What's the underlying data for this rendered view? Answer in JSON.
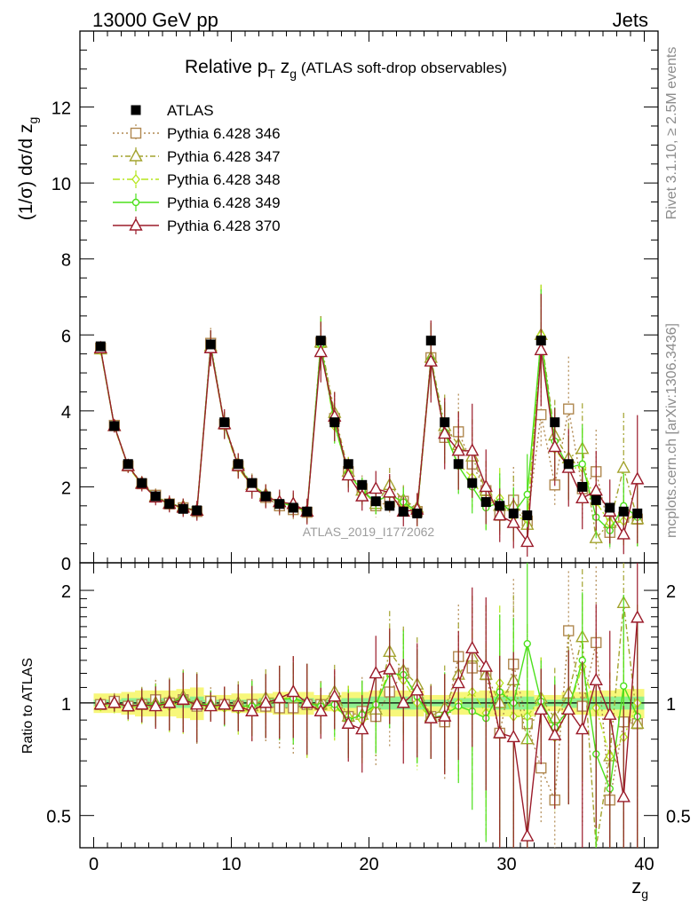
{
  "header": {
    "left": "13000 GeV pp",
    "right": "Jets"
  },
  "side_labels": {
    "rivet": "Rivet 3.1.10, ≥ 2.5M events",
    "mcplots": "mcplots.cern.ch [arXiv:1306.3436]"
  },
  "chart_data": [
    {
      "type": "line",
      "title": "Relative pT zg (ATLAS soft-drop observables)",
      "ylabel": "(1/σ) dσ/d zg",
      "xlabel": "zg",
      "xlim": [
        -1,
        41
      ],
      "ylim": [
        0,
        14
      ],
      "yticks": [
        0,
        2,
        4,
        6,
        8,
        10,
        12
      ],
      "xticks": [
        0,
        10,
        20,
        30,
        40
      ],
      "watermark": "ATLAS_2019_I1772062",
      "legend_position": "top-left",
      "x": [
        0.5,
        1.5,
        2.5,
        3.5,
        4.5,
        5.5,
        6.5,
        7.5,
        8.5,
        9.5,
        10.5,
        11.5,
        12.5,
        13.5,
        14.5,
        15.5,
        16.5,
        17.5,
        18.5,
        19.5,
        20.5,
        21.5,
        22.5,
        23.5,
        24.5,
        25.5,
        26.5,
        27.5,
        28.5,
        29.5,
        30.5,
        31.5,
        32.5,
        33.5,
        34.5,
        35.5,
        36.5,
        37.5,
        38.5,
        39.5
      ],
      "series": [
        {
          "name": "ATLAS",
          "color": "#000000",
          "marker": "filled-square",
          "values": [
            5.7,
            3.6,
            2.6,
            2.1,
            1.75,
            1.55,
            1.42,
            1.38,
            5.75,
            3.7,
            2.6,
            2.1,
            1.75,
            1.55,
            1.45,
            1.35,
            5.85,
            3.7,
            2.6,
            2.05,
            1.62,
            1.5,
            1.35,
            1.3,
            5.85,
            3.7,
            2.6,
            2.1,
            1.6,
            1.5,
            1.3,
            1.25,
            5.85,
            3.7,
            2.6,
            2.0,
            1.65,
            1.45,
            1.35,
            1.3
          ]
        },
        {
          "name": "Pythia 6.428 346",
          "color": "#b08850",
          "marker": "open-square",
          "dash": "2,3",
          "values": [
            5.65,
            3.62,
            2.55,
            2.08,
            1.78,
            1.55,
            1.45,
            1.35,
            5.78,
            3.65,
            2.55,
            2.08,
            1.72,
            1.5,
            1.4,
            1.33,
            5.8,
            3.8,
            2.4,
            1.95,
            1.5,
            1.6,
            1.62,
            1.35,
            5.4,
            3.3,
            3.45,
            2.6,
            1.9,
            1.25,
            1.65,
            1.1,
            3.9,
            2.05,
            4.05,
            1.95,
            2.4,
            0.8,
            1.2,
            1.15
          ]
        },
        {
          "name": "Pythia 6.428 347",
          "color": "#a3a32e",
          "marker": "open-triangle",
          "dash": "6,3,2,3",
          "values": [
            5.62,
            3.6,
            2.55,
            2.1,
            1.75,
            1.56,
            1.48,
            1.38,
            5.7,
            3.65,
            2.6,
            2.05,
            1.8,
            1.6,
            1.55,
            1.35,
            5.8,
            3.95,
            2.4,
            1.9,
            1.55,
            2.05,
            1.65,
            1.45,
            5.4,
            3.6,
            3.1,
            2.8,
            1.9,
            1.5,
            1.5,
            1.0,
            6.0,
            3.35,
            2.75,
            3.0,
            0.65,
            1.05,
            2.5,
            1.15
          ]
        },
        {
          "name": "Pythia 6.428 348",
          "color": "#b5e61d",
          "marker": "open-diamond",
          "dash": "8,3,2,3",
          "values": [
            5.6,
            3.58,
            2.52,
            2.06,
            1.73,
            1.52,
            1.44,
            1.36,
            5.65,
            3.6,
            2.5,
            2.0,
            1.75,
            1.6,
            1.5,
            1.32,
            5.7,
            3.6,
            2.4,
            1.85,
            1.6,
            1.85,
            1.55,
            1.3,
            5.3,
            3.4,
            2.6,
            2.25,
            1.5,
            1.7,
            1.2,
            1.15,
            6.0,
            3.0,
            2.5,
            2.5,
            1.6,
            1.05,
            1.1,
            1.3
          ]
        },
        {
          "name": "Pythia 6.428 349",
          "color": "#4ce01c",
          "marker": "open-circle",
          "dash": "",
          "values": [
            5.62,
            3.6,
            2.55,
            2.08,
            1.74,
            1.55,
            1.47,
            1.37,
            5.72,
            3.62,
            2.55,
            2.05,
            1.75,
            1.58,
            1.5,
            1.35,
            5.75,
            3.65,
            2.35,
            1.9,
            1.6,
            1.8,
            1.6,
            1.35,
            5.35,
            3.45,
            2.55,
            2.0,
            1.45,
            1.6,
            1.3,
            1.8,
            5.9,
            3.2,
            2.5,
            2.6,
            1.2,
            0.85,
            1.5,
            1.2
          ]
        },
        {
          "name": "Pythia 6.428 370",
          "color": "#9b1b2a",
          "marker": "open-triangle",
          "dash": "",
          "values": [
            5.65,
            3.6,
            2.55,
            2.08,
            1.72,
            1.55,
            1.45,
            1.37,
            5.65,
            3.65,
            2.55,
            2.0,
            1.75,
            1.6,
            1.55,
            1.35,
            5.55,
            3.85,
            2.3,
            1.75,
            1.95,
            1.85,
            1.35,
            1.4,
            5.3,
            3.4,
            2.95,
            2.95,
            2.0,
            1.25,
            1.05,
            0.55,
            5.6,
            3.05,
            2.5,
            1.7,
            1.9,
            1.35,
            0.75,
            2.2
          ]
        }
      ]
    },
    {
      "type": "line",
      "ylabel": "Ratio to ATLAS",
      "xlabel": "zg",
      "ylim": [
        0.41,
        2.37
      ],
      "yscale": "log",
      "yticks": [
        0.5,
        1,
        2
      ],
      "xticks": [
        0,
        10,
        20,
        30,
        40
      ],
      "reference": 1,
      "band_colors": [
        "#f7f77a",
        "#8ff08f"
      ],
      "band_inner": [
        0.02,
        0.02,
        0.03,
        0.03,
        0.03,
        0.03,
        0.03,
        0.04,
        0.02,
        0.02,
        0.02,
        0.02,
        0.03,
        0.03,
        0.03,
        0.03,
        0.02,
        0.02,
        0.03,
        0.03,
        0.04,
        0.04,
        0.04,
        0.04,
        0.02,
        0.02,
        0.03,
        0.03,
        0.03,
        0.04,
        0.04,
        0.04,
        0.02,
        0.02,
        0.03,
        0.03,
        0.04,
        0.04,
        0.04,
        0.04
      ],
      "band_outer": [
        0.06,
        0.06,
        0.07,
        0.08,
        0.08,
        0.08,
        0.09,
        0.1,
        0.05,
        0.05,
        0.06,
        0.06,
        0.06,
        0.07,
        0.07,
        0.07,
        0.05,
        0.05,
        0.07,
        0.07,
        0.08,
        0.08,
        0.08,
        0.08,
        0.05,
        0.05,
        0.07,
        0.07,
        0.08,
        0.08,
        0.08,
        0.08,
        0.05,
        0.05,
        0.07,
        0.07,
        0.08,
        0.08,
        0.09,
        0.09
      ],
      "series": [
        {
          "name": "Pythia 6.428 346",
          "values": [
            0.99,
            1.01,
            0.98,
            0.99,
            1.02,
            1.0,
            1.02,
            0.98,
            1.01,
            0.99,
            0.98,
            0.99,
            0.98,
            0.97,
            0.97,
            0.99,
            0.99,
            1.03,
            0.92,
            0.95,
            0.92,
            1.07,
            1.2,
            1.04,
            0.92,
            0.89,
            1.33,
            1.24,
            1.19,
            0.83,
            1.27,
            0.88,
            0.67,
            0.55,
            1.56,
            0.98,
            1.45,
            0.55,
            0.89,
            0.88
          ]
        },
        {
          "name": "Pythia 6.428 347",
          "values": [
            0.99,
            1.0,
            0.98,
            1.0,
            1.0,
            1.01,
            1.04,
            1.0,
            0.99,
            0.99,
            1.0,
            0.98,
            1.03,
            1.03,
            1.07,
            1.0,
            0.99,
            1.07,
            0.92,
            0.93,
            0.96,
            1.37,
            1.22,
            1.12,
            0.92,
            0.97,
            1.19,
            1.33,
            1.19,
            1.0,
            1.15,
            0.8,
            1.03,
            0.91,
            1.06,
            1.5,
            0.39,
            0.72,
            1.85,
            0.88
          ]
        },
        {
          "name": "Pythia 6.428 348",
          "values": [
            0.98,
            0.99,
            0.97,
            0.98,
            0.99,
            0.98,
            1.01,
            0.99,
            0.98,
            0.97,
            0.96,
            0.95,
            1.0,
            1.03,
            1.03,
            0.98,
            0.97,
            0.97,
            0.92,
            0.9,
            0.99,
            1.23,
            1.15,
            1.0,
            0.91,
            0.92,
            1.0,
            1.07,
            0.94,
            1.13,
            0.92,
            0.92,
            1.03,
            0.81,
            0.96,
            1.25,
            0.97,
            0.72,
            0.81,
            1.0
          ]
        },
        {
          "name": "Pythia 6.428 349",
          "values": [
            0.99,
            1.0,
            0.98,
            0.99,
            0.99,
            1.0,
            1.03,
            0.99,
            0.99,
            0.98,
            0.98,
            0.98,
            1.0,
            1.02,
            1.03,
            1.0,
            0.98,
            0.99,
            0.9,
            0.93,
            0.99,
            1.2,
            1.19,
            1.04,
            0.91,
            0.93,
            0.98,
            0.95,
            0.91,
            1.07,
            1.0,
            1.44,
            1.01,
            0.86,
            0.96,
            1.3,
            0.73,
            0.59,
            1.11,
            0.92
          ]
        },
        {
          "name": "Pythia 6.428 370",
          "values": [
            0.99,
            1.0,
            0.98,
            0.99,
            0.98,
            1.0,
            1.02,
            0.99,
            0.98,
            0.99,
            0.98,
            0.95,
            1.0,
            1.03,
            1.07,
            1.0,
            0.95,
            1.04,
            0.88,
            0.85,
            1.2,
            1.23,
            1.0,
            1.08,
            0.91,
            0.92,
            1.13,
            1.4,
            1.25,
            0.83,
            0.81,
            0.44,
            0.96,
            0.82,
            0.96,
            0.85,
            1.15,
            0.93,
            0.56,
            1.69
          ]
        }
      ]
    }
  ]
}
